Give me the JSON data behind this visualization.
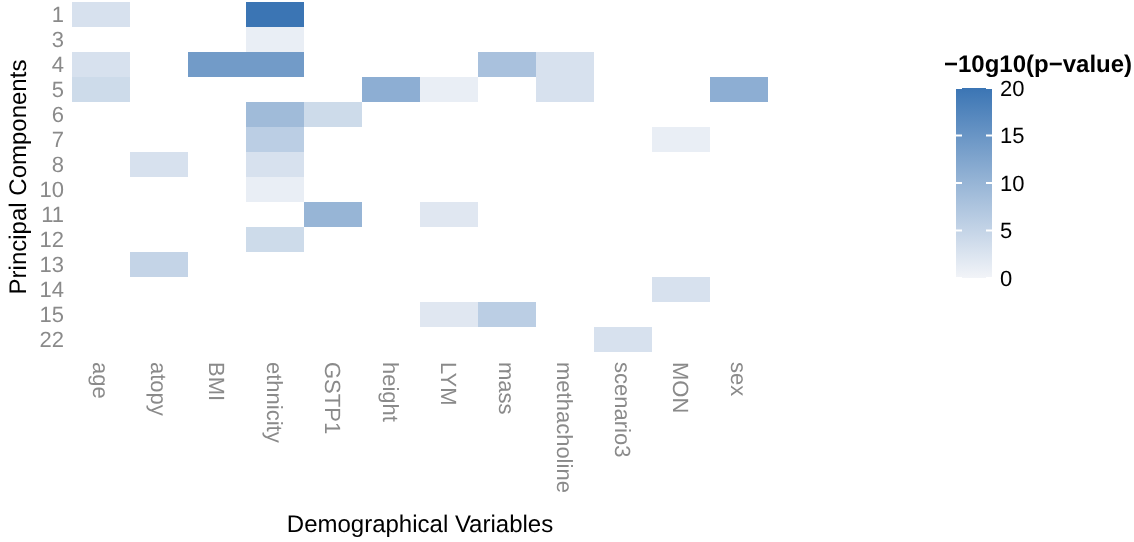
{
  "chart_data": {
    "type": "heatmap",
    "xlabel": "Demographical Variables",
    "ylabel": "Principal Components",
    "clabel": "−10g10(p−value)",
    "categories": [
      "age",
      "atopy",
      "BMI",
      "ethnicity",
      "GSTP1",
      "height",
      "LYM",
      "mass",
      "methacholine",
      "scenario3",
      "MON",
      "sex"
    ],
    "y_categories": [
      "1",
      "3",
      "4",
      "5",
      "6",
      "7",
      "8",
      "10",
      "11",
      "12",
      "13",
      "14",
      "15",
      "22"
    ],
    "cells": [
      [
        3,
        null,
        null,
        20,
        null,
        null,
        null,
        null,
        null,
        null,
        null,
        null
      ],
      [
        null,
        null,
        null,
        1,
        null,
        null,
        null,
        null,
        null,
        null,
        null,
        null
      ],
      [
        3,
        null,
        14,
        14,
        null,
        null,
        null,
        8,
        3,
        null,
        null,
        null
      ],
      [
        4,
        null,
        null,
        null,
        null,
        11,
        1,
        null,
        3,
        null,
        null,
        11
      ],
      [
        null,
        null,
        null,
        9,
        4,
        null,
        null,
        null,
        null,
        null,
        null,
        null
      ],
      [
        null,
        null,
        null,
        6,
        null,
        null,
        null,
        null,
        null,
        null,
        1,
        null
      ],
      [
        null,
        3,
        null,
        3,
        null,
        null,
        null,
        null,
        null,
        null,
        null,
        null
      ],
      [
        null,
        null,
        null,
        1,
        null,
        null,
        null,
        null,
        null,
        null,
        null,
        null
      ],
      [
        null,
        null,
        null,
        null,
        10,
        null,
        2,
        null,
        null,
        null,
        null,
        null
      ],
      [
        null,
        null,
        null,
        4,
        null,
        null,
        null,
        null,
        null,
        null,
        null,
        null
      ],
      [
        null,
        5,
        null,
        null,
        null,
        null,
        null,
        null,
        null,
        null,
        null,
        null
      ],
      [
        null,
        null,
        null,
        null,
        null,
        null,
        null,
        null,
        null,
        null,
        3,
        null
      ],
      [
        null,
        null,
        null,
        null,
        null,
        null,
        2,
        6,
        null,
        null,
        null,
        null
      ],
      [
        null,
        null,
        null,
        null,
        null,
        null,
        null,
        null,
        null,
        3,
        null,
        null
      ]
    ],
    "clim": [
      0,
      20
    ],
    "cticks": [
      0,
      5,
      10,
      15,
      20
    ]
  }
}
